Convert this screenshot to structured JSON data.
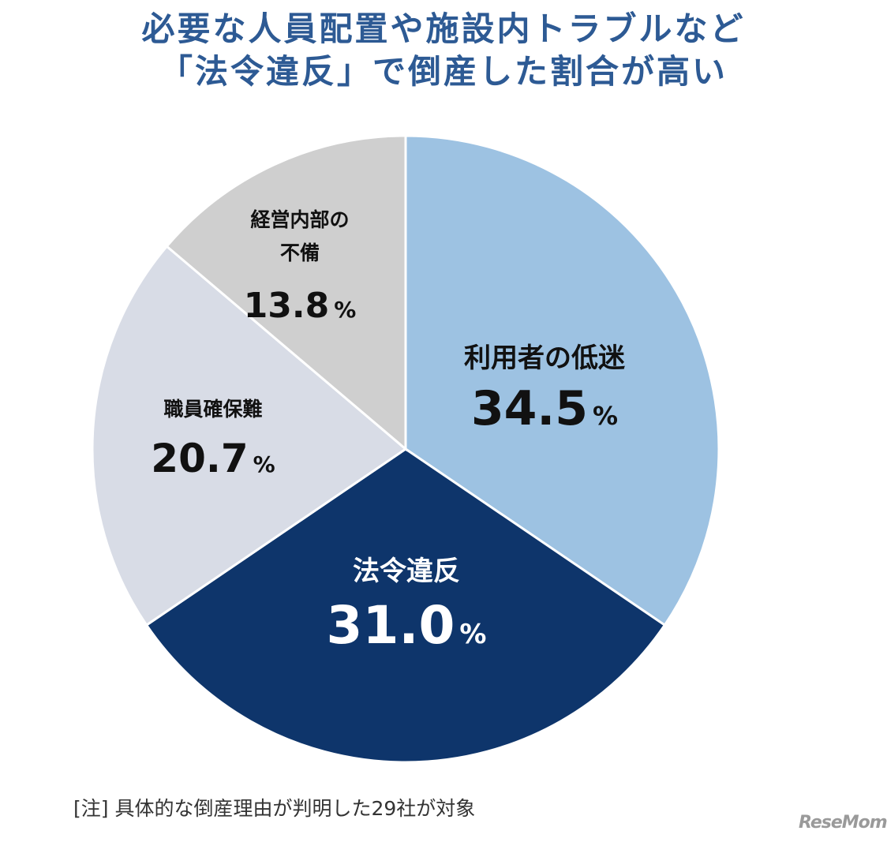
{
  "title": {
    "line1": "必要な人員配置や施設内トラブルなど",
    "line2": "「法令違反」で倒産した割合が高い"
  },
  "note": "[注] 具体的な倒産理由が判明した29社が対象",
  "logo": "ReseMom",
  "chart_data": {
    "type": "pie",
    "start": "12 o'clock",
    "direction": "clockwise",
    "categories": [
      "利用者の低迷",
      "法令違反",
      "職員確保難",
      "経営内部の不備"
    ],
    "values": [
      34.5,
      31.0,
      20.7,
      13.8
    ],
    "value_labels": [
      "34.5",
      "31.0",
      "20.7",
      "13.8"
    ],
    "unit": "%",
    "colors": [
      "#9dc2e2",
      "#0e356b",
      "#d8dce6",
      "#cfcfcf"
    ],
    "text_colors": [
      "#111111",
      "#ffffff",
      "#111111",
      "#111111"
    ]
  }
}
